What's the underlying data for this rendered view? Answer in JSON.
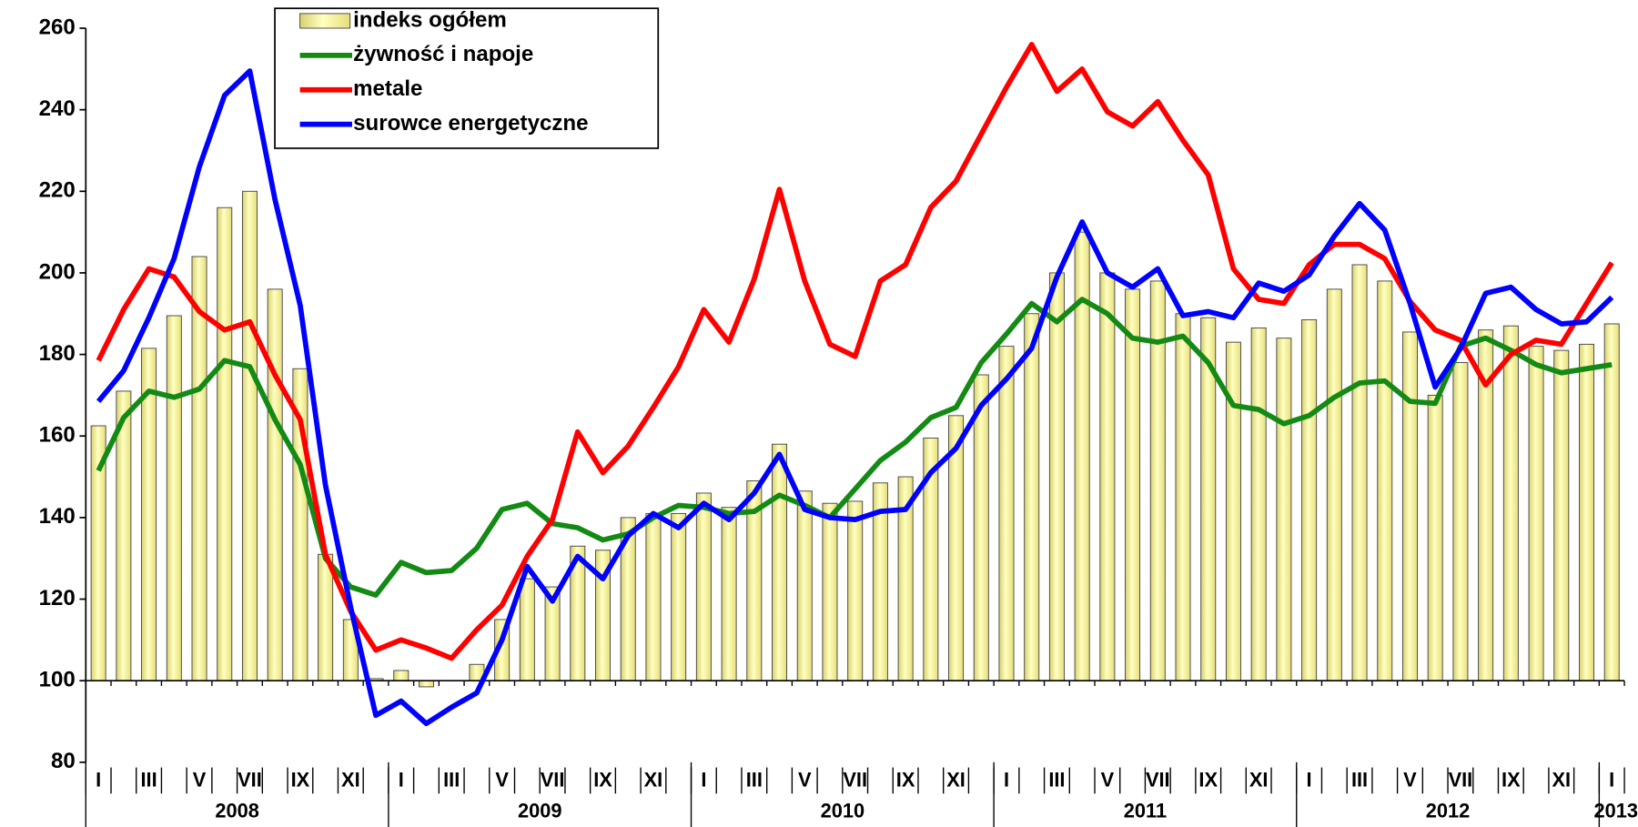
{
  "chart_data": {
    "type": "bar-line",
    "categories": [
      "I",
      null,
      "III",
      null,
      "V",
      null,
      "VII",
      null,
      "IX",
      null,
      "XI",
      null,
      "I",
      null,
      "III",
      null,
      "V",
      null,
      "VII",
      null,
      "IX",
      null,
      "XI",
      null,
      "I",
      null,
      "III",
      null,
      "V",
      null,
      "VII",
      null,
      "IX",
      null,
      "XI",
      null,
      "I",
      null,
      "III",
      null,
      "V",
      null,
      "VII",
      null,
      "IX",
      null,
      "XI",
      null,
      "I",
      null,
      "III",
      null,
      "V",
      null,
      "VII",
      null,
      "IX",
      null,
      "XI",
      null,
      "I"
    ],
    "years": [
      "2008",
      "2009",
      "2010",
      "2011",
      "2012",
      "2013"
    ],
    "ylim": [
      80,
      260
    ],
    "yticks": [
      80,
      100,
      120,
      140,
      160,
      180,
      200,
      220,
      240,
      260
    ],
    "baseline": 100,
    "legend": "top-left",
    "series": [
      {
        "name": "indeks ogółem",
        "type": "bar",
        "color": "#ffff99",
        "values": [
          162.5,
          171,
          181.5,
          189.5,
          204,
          216,
          220,
          196,
          176.5,
          131,
          115,
          100.5,
          102.5,
          98.5,
          100,
          104,
          115,
          125,
          123,
          133,
          132,
          140,
          141,
          141,
          146,
          142.5,
          149,
          158,
          146.5,
          143.5,
          144,
          148.5,
          150,
          159.5,
          165,
          175,
          182,
          190,
          200,
          210,
          200,
          196,
          198,
          190,
          189,
          183,
          186.5,
          184,
          188.5,
          196,
          202,
          198,
          185.5,
          170,
          178,
          186,
          187,
          182,
          181,
          182.5,
          187.5
        ]
      },
      {
        "name": "żywność i napoje",
        "type": "line",
        "color": "#138a13",
        "values": [
          151.5,
          164.5,
          171,
          169.5,
          171.5,
          178.5,
          177,
          164,
          153,
          130,
          123,
          121,
          129,
          126.5,
          127,
          132.5,
          142,
          143.5,
          138.5,
          137.5,
          134.5,
          136,
          140,
          143,
          142.5,
          141,
          141.5,
          145.5,
          143,
          140,
          147,
          154,
          158.5,
          164.5,
          167,
          178,
          185,
          192.5,
          188,
          193.5,
          190,
          184,
          183,
          184.5,
          178,
          167.5,
          166.5,
          163,
          165,
          169.5,
          173,
          173.5,
          168.5,
          168,
          182,
          184,
          181,
          177.5,
          175.5,
          176.5,
          177.5
        ]
      },
      {
        "name": "metale",
        "type": "line",
        "color": "#ff0000",
        "values": [
          178.5,
          191,
          201,
          199,
          190.5,
          186,
          188,
          175,
          164,
          131,
          117,
          107.5,
          110,
          108,
          105.5,
          112.5,
          118.5,
          130.5,
          139.5,
          161,
          151,
          157.5,
          167,
          177,
          191,
          183,
          198.5,
          220.5,
          198,
          182.5,
          179.5,
          198,
          202,
          216,
          222.5,
          234,
          245.5,
          256,
          244.5,
          250,
          239.5,
          236,
          242,
          232.5,
          224,
          201,
          193.5,
          192.5,
          202,
          207,
          207,
          203.5,
          193,
          186,
          183.5,
          172.5,
          180,
          183.5,
          182.5,
          192.5,
          202.5
        ]
      },
      {
        "name": "surowce energetyczne",
        "type": "line",
        "color": "#0000ff",
        "values": [
          168.5,
          176,
          189,
          203.5,
          226,
          243.5,
          249.5,
          218,
          192,
          148,
          118,
          91.5,
          95,
          89.5,
          93.5,
          97,
          110,
          128,
          119.5,
          130.5,
          125,
          135.5,
          141,
          137.5,
          143.5,
          139.5,
          146,
          155.5,
          142,
          140,
          139.5,
          141.5,
          142,
          151,
          157,
          167.5,
          174,
          181.5,
          199,
          212.5,
          200,
          196.5,
          201,
          189.5,
          190.5,
          189,
          197.5,
          195.5,
          199.5,
          209,
          217,
          210.5,
          192.5,
          172,
          181.5,
          195,
          196.5,
          191,
          187.5,
          188,
          194
        ]
      }
    ]
  }
}
